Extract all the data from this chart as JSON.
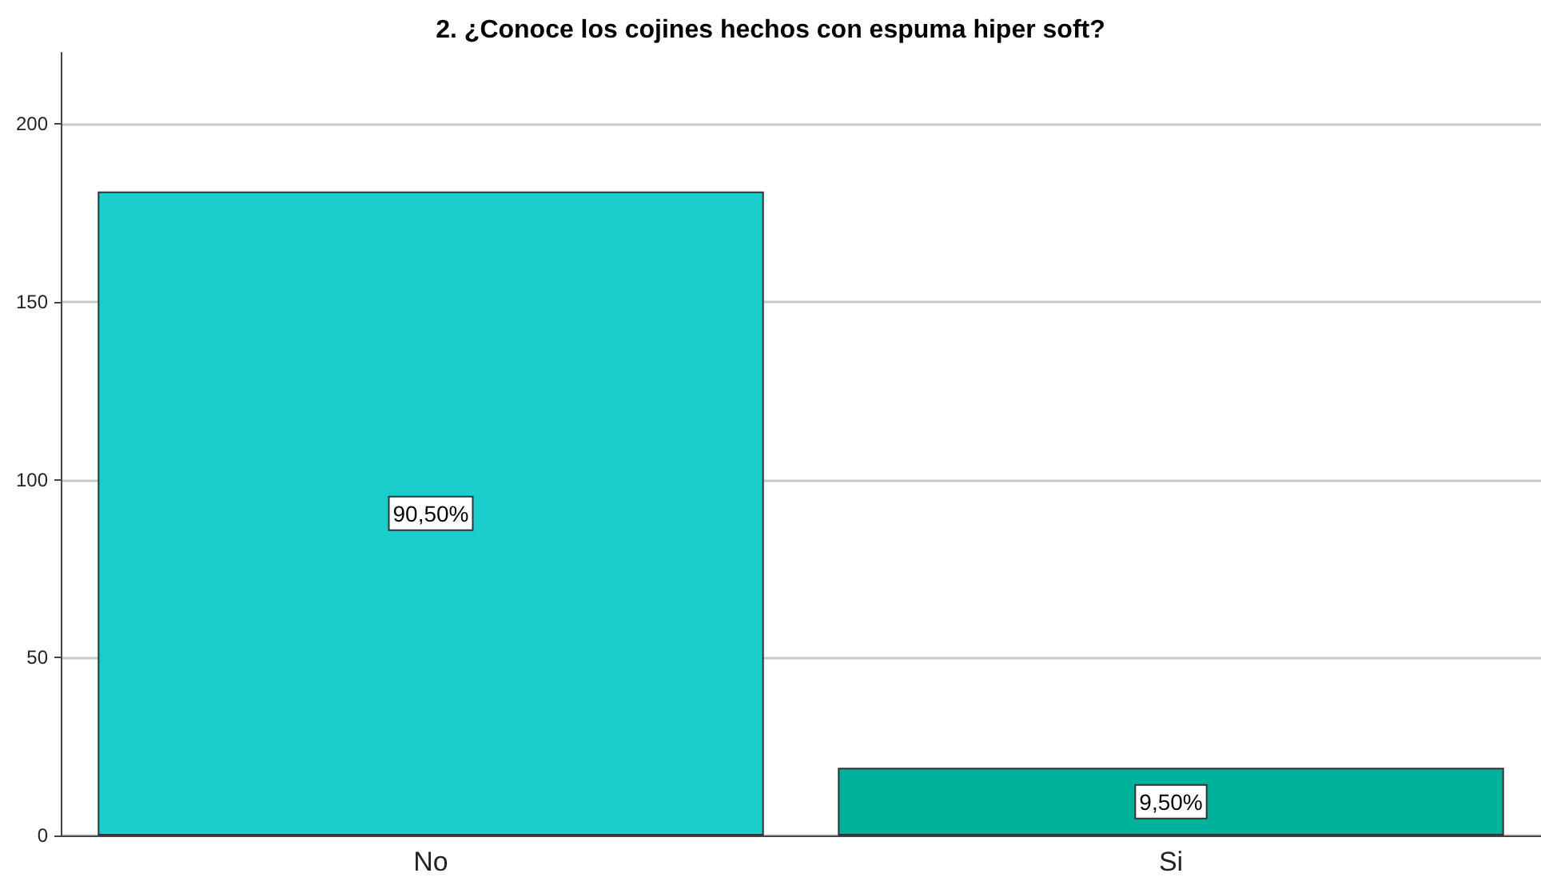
{
  "chart_data": {
    "type": "bar",
    "title": "2. ¿Conoce los cojines hechos con espuma hiper soft?",
    "categories": [
      "No",
      "Si"
    ],
    "values": [
      181,
      19
    ],
    "colors": [
      "#1ccdce",
      "#00b19b"
    ],
    "annotations": [
      "90,50%",
      "9,50%"
    ],
    "ylim": [
      0,
      220
    ],
    "yticks": [
      0,
      50,
      100,
      150,
      200
    ],
    "grid": "y"
  }
}
